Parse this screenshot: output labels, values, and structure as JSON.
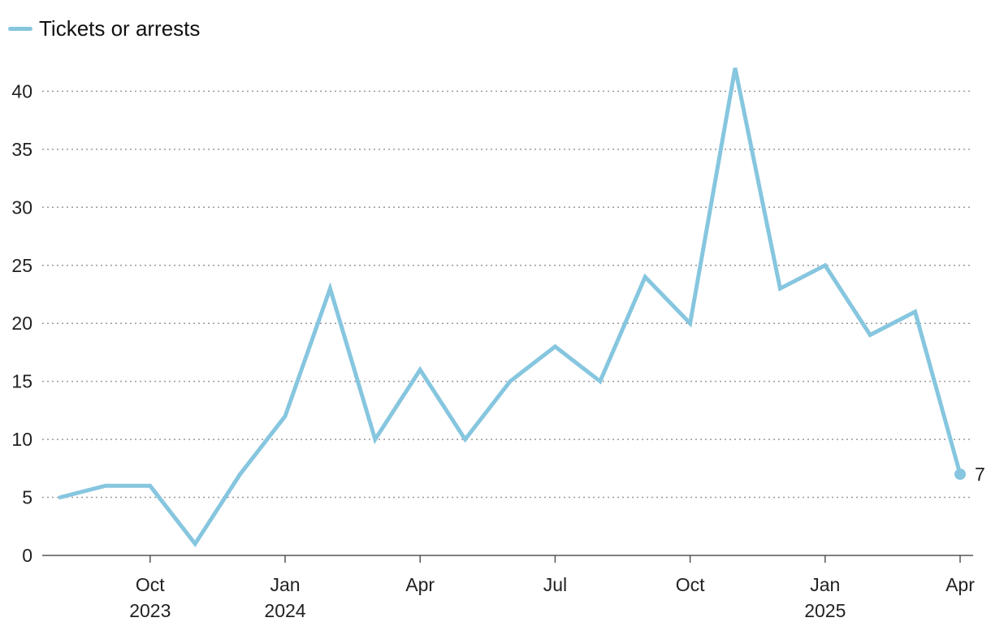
{
  "legend": {
    "label": "Tickets or arrests",
    "color": "#86c6df"
  },
  "chart_data": {
    "type": "line",
    "title": "",
    "xlabel": "",
    "ylabel": "",
    "ylim": [
      0,
      42
    ],
    "y_ticks": [
      0,
      5,
      10,
      15,
      20,
      25,
      30,
      35,
      40
    ],
    "grid": "horizontal dotted",
    "legend_position": "top-left",
    "x": [
      "2023-08",
      "2023-09",
      "2023-10",
      "2023-11",
      "2023-12",
      "2024-01",
      "2024-02",
      "2024-03",
      "2024-04",
      "2024-05",
      "2024-06",
      "2024-07",
      "2024-08",
      "2024-09",
      "2024-10",
      "2024-11",
      "2024-12",
      "2025-01",
      "2025-02",
      "2025-03",
      "2025-04"
    ],
    "x_ticks": [
      {
        "month": "2023-10",
        "line1": "Oct",
        "line2": "2023"
      },
      {
        "month": "2024-01",
        "line1": "Jan",
        "line2": "2024"
      },
      {
        "month": "2024-04",
        "line1": "Apr",
        "line2": ""
      },
      {
        "month": "2024-07",
        "line1": "Jul",
        "line2": ""
      },
      {
        "month": "2024-10",
        "line1": "Oct",
        "line2": ""
      },
      {
        "month": "2025-01",
        "line1": "Jan",
        "line2": "2025"
      },
      {
        "month": "2025-04",
        "line1": "Apr",
        "line2": ""
      }
    ],
    "series": [
      {
        "name": "Tickets or arrests",
        "color": "#86c6df",
        "values": [
          5,
          6,
          6,
          1,
          7,
          12,
          23,
          10,
          16,
          10,
          15,
          18,
          15,
          24,
          20,
          42,
          23,
          25,
          19,
          21,
          7
        ]
      }
    ],
    "end_label": "7"
  }
}
